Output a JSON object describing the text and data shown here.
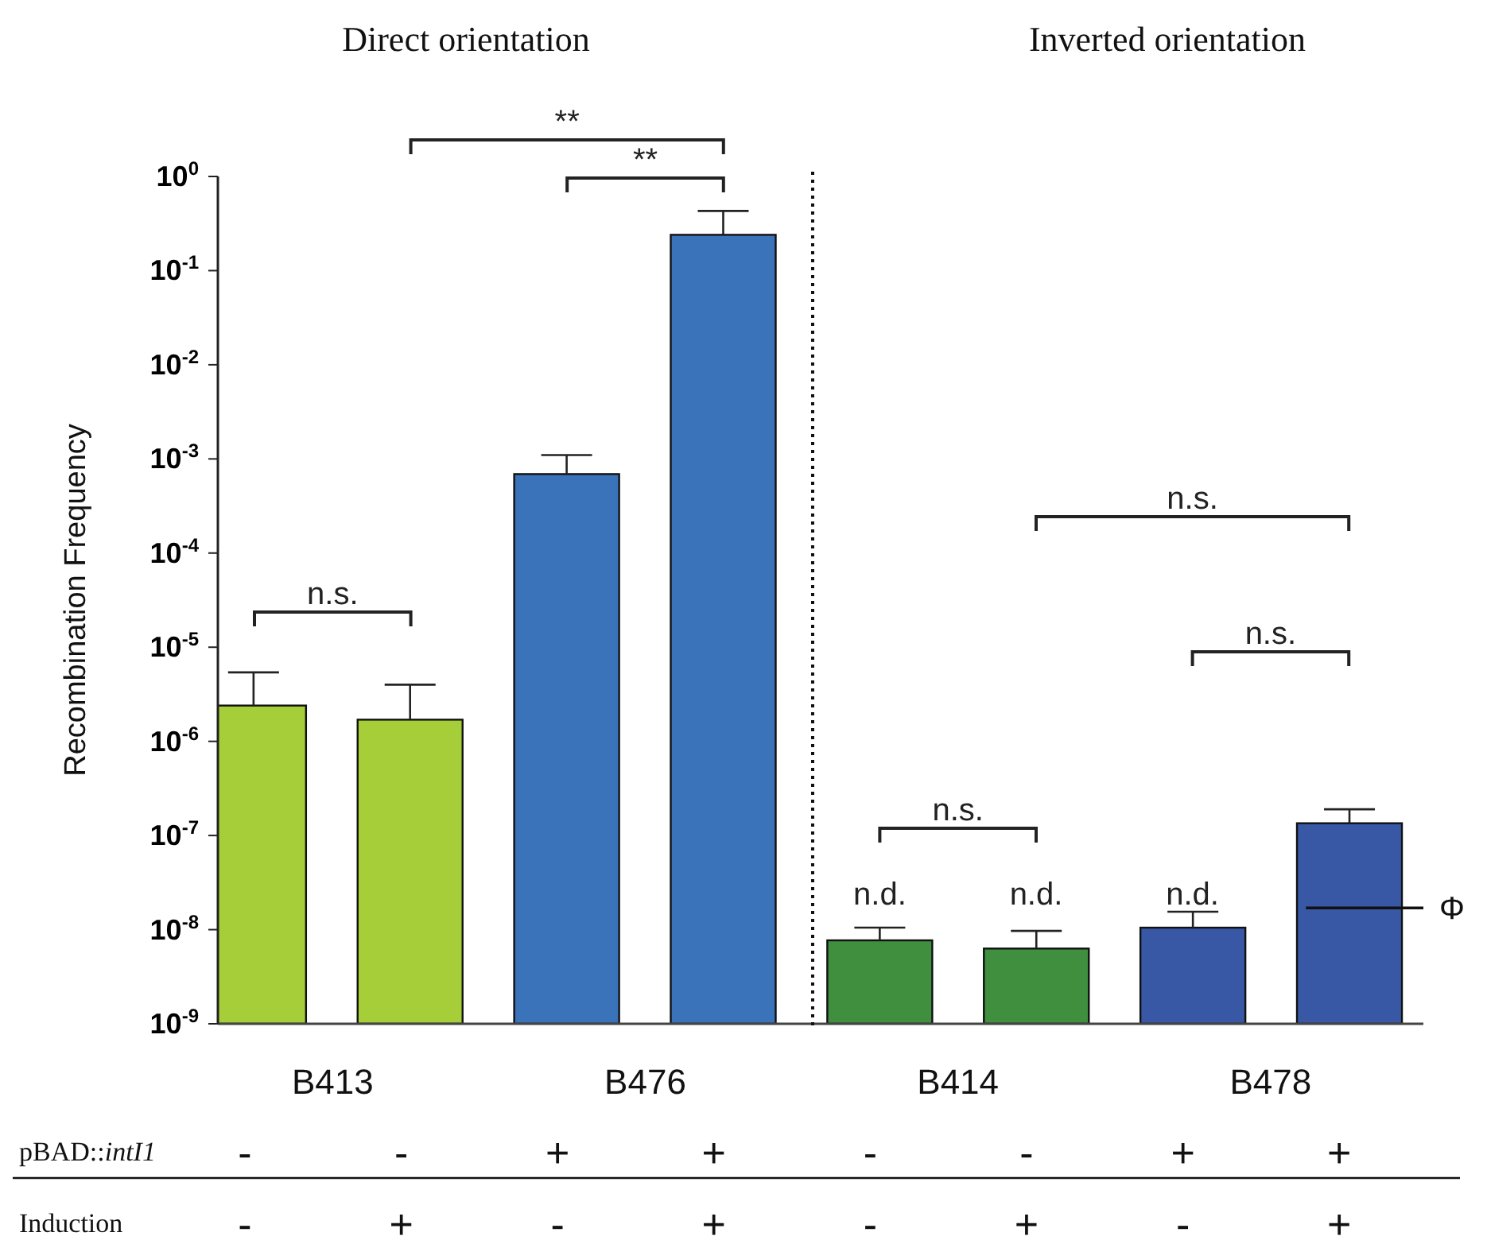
{
  "chart_data": {
    "type": "bar",
    "ylabel": "Recombination Frequency",
    "log": true,
    "categories": [
      null,
      null,
      null,
      null,
      null,
      null,
      null,
      null
    ],
    "values": [
      2.4e-06,
      1.7e-06,
      0.00069,
      0.24,
      7.7e-09,
      6.3e-09,
      1.05e-08,
      1.35e-07
    ],
    "colors": [
      "#a6ce39",
      "#a6ce39",
      "#3a73b9",
      "#3a73b9",
      "#3f8f3f",
      "#3f8f3f",
      "#3857a5",
      "#3857a5"
    ],
    "errors": [
      [
        2.4e-06,
        5.4e-06
      ],
      [
        1.7e-06,
        4e-06
      ],
      [
        0.00069,
        0.0011
      ],
      [
        0.24,
        0.43
      ],
      [
        7.7e-09,
        1.05e-08
      ],
      [
        6.3e-09,
        9.7e-09
      ],
      [
        1.05e-08,
        1.55e-08
      ],
      [
        1.35e-07,
        1.9e-07
      ]
    ],
    "ylim": [
      1e-09,
      1
    ],
    "yticks": [
      {
        "value": 1,
        "label": "10$^{0}$"
      },
      {
        "value": 0.1,
        "label": "10$^{-1}$"
      },
      {
        "value": 0.01,
        "label": "10$^{-2}$"
      },
      {
        "value": 0.001,
        "label": "10$^{-3}$"
      },
      {
        "value": 0.0001,
        "label": "10$^{-4}$"
      },
      {
        "value": 1e-05,
        "label": "10$^{-5}$"
      },
      {
        "value": 1e-06,
        "label": "10$^{-6}$"
      },
      {
        "value": 1e-07,
        "label": "10$^{-7}$"
      },
      {
        "value": 1e-08,
        "label": "10$^{-8}$"
      },
      {
        "value": 1e-09,
        "label": "10$^{-9}$"
      }
    ],
    "ref_lines": [
      {
        "axis": "y",
        "value": 1.7e-08,
        "label": "Φ"
      }
    ],
    "annotations": [
      "Direct orientation",
      "Inverted orientation",
      "B413",
      "B476",
      "B414",
      "B478",
      "pBAD::intI1",
      "Induction",
      "-",
      "-",
      "+",
      "+",
      "-",
      "-",
      "+",
      "+",
      "-",
      "+",
      "-",
      "+",
      "-",
      "+",
      "-",
      "+",
      "**",
      "**",
      "n.s.",
      "n.s.",
      "n.s.",
      "n.s.",
      "n.d.",
      "n.d.",
      "n.d."
    ]
  }
}
